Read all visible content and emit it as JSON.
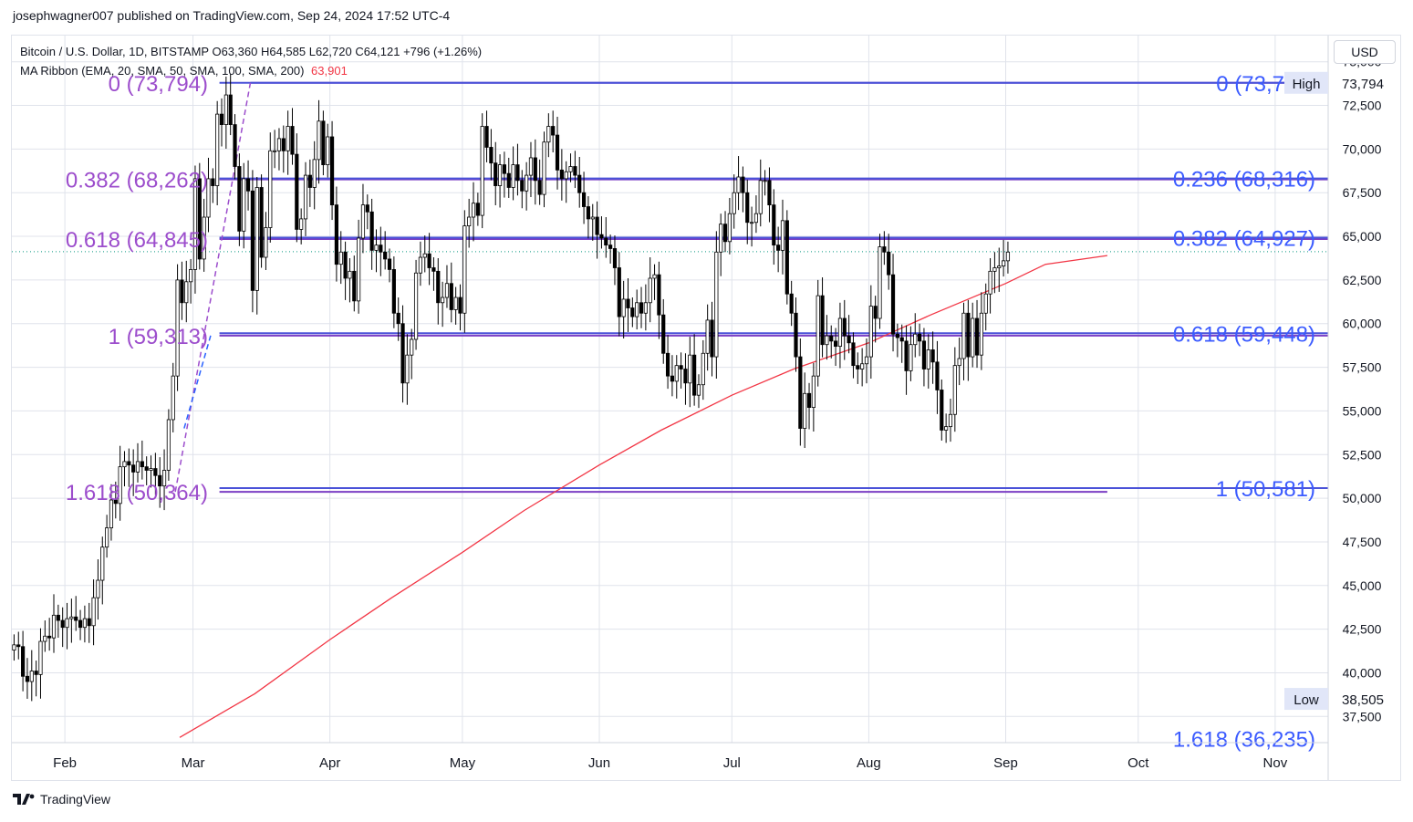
{
  "header": {
    "publisher_line": "josephwagner007 published on TradingView.com, Sep 24, 2024 17:52 UTC-4"
  },
  "legend": {
    "symbol_line": "Bitcoin / U.S. Dollar, 1D, BITSTAMP  O63,360  H64,585  L62,720  C64,121  +796 (+1.26%)",
    "ma_label": "MA Ribbon (EMA, 20, SMA, 50, SMA, 100, SMA, 200)",
    "ma_value": "63,901"
  },
  "price_axis": {
    "currency": "USD",
    "high_label": "High",
    "high_value": "73,794",
    "low_label": "Low",
    "low_value": "38,505"
  },
  "footer": {
    "brand": "TradingView"
  },
  "colors": {
    "up": "#000000",
    "down": "#000000",
    "up_fill": "#ffffff",
    "down_fill": "#000000",
    "ma200": "#f23645",
    "fib_left": "#9c4dcc",
    "fib_right": "#3b5bff",
    "level_line_a": "#7b3fc4",
    "level_line_b": "#4a52d8",
    "grid": "#e0e3eb",
    "tag_high_bg": "#e1e6f8",
    "tag_low_bg": "#e1e6f8"
  },
  "chart_data": {
    "type": "candlestick",
    "title": "Bitcoin / U.S. Dollar, 1D, BITSTAMP",
    "ylim": [
      36000,
      76500
    ],
    "y_ticks": [
      37500,
      40000,
      42500,
      45000,
      47500,
      50000,
      52500,
      55000,
      57500,
      60000,
      62500,
      65000,
      67500,
      70000,
      72500,
      75000
    ],
    "y_tick_labels": [
      "37,500",
      "40,000",
      "42,500",
      "45,000",
      "47,500",
      "50,000",
      "52,500",
      "55,000",
      "57,500",
      "60,000",
      "62,500",
      "65,000",
      "67,500",
      "70,000",
      "72,500",
      "75,000"
    ],
    "x_start": "2024-01-20",
    "x_end": "2024-11-13",
    "x_ticks": [
      {
        "date": "2024-02-01",
        "label": "Feb"
      },
      {
        "date": "2024-03-01",
        "label": "Mar"
      },
      {
        "date": "2024-04-01",
        "label": "Apr"
      },
      {
        "date": "2024-05-01",
        "label": "May"
      },
      {
        "date": "2024-06-01",
        "label": "Jun"
      },
      {
        "date": "2024-07-01",
        "label": "Jul"
      },
      {
        "date": "2024-08-01",
        "label": "Aug"
      },
      {
        "date": "2024-09-01",
        "label": "Sep"
      },
      {
        "date": "2024-10-01",
        "label": "Oct"
      },
      {
        "date": "2024-11-01",
        "label": "Nov"
      }
    ],
    "candles_start_date": "2024-01-20",
    "candles_close": [
      41600,
      41500,
      39800,
      39500,
      40100,
      39900,
      41800,
      42100,
      42000,
      43300,
      43000,
      42600,
      43100,
      43200,
      43000,
      42600,
      43100,
      42700,
      44300,
      45300,
      47200,
      48300,
      49900,
      49700,
      51800,
      52100,
      51900,
      51500,
      52100,
      51800,
      51600,
      51700,
      51300,
      50700,
      51600,
      54500,
      57000,
      62500,
      61200,
      62400,
      63100,
      68300,
      63700,
      66100,
      68300,
      67900,
      72000,
      71400,
      73100,
      71400,
      69000,
      65300,
      68300,
      67600,
      61900,
      67800,
      63800,
      65500,
      69900,
      69900,
      70600,
      69900,
      71300,
      69700,
      65400,
      66000,
      68500,
      67800,
      69400,
      71600,
      69100,
      70700,
      66800,
      63400,
      64100,
      62600,
      63000,
      61300,
      64900,
      66800,
      66400,
      64200,
      64500,
      64100,
      63700,
      63100,
      60600,
      60000,
      56600,
      58200,
      59100,
      62900,
      63800,
      64000,
      63200,
      63000,
      61200,
      61500,
      62300,
      60800,
      61500,
      60600,
      65600,
      66100,
      66900,
      66200,
      71300,
      70100,
      69200,
      67900,
      69100,
      68600,
      67800,
      69100,
      68200,
      67600,
      68500,
      69500,
      68200,
      67400,
      70400,
      71300,
      70800,
      68800,
      68300,
      68700,
      69000,
      68500,
      67500,
      66700,
      66000,
      66100,
      65100,
      64900,
      64500,
      64300,
      63200,
      60400,
      61400,
      60900,
      60400,
      61200,
      60600,
      61200,
      62600,
      62800,
      60500,
      58300,
      57000,
      56700,
      57600,
      57400,
      56600,
      58200,
      55900,
      56500,
      58300,
      60200,
      58100,
      64100,
      65700,
      64700,
      66300,
      67500,
      68400,
      67500,
      65800,
      65800,
      66300,
      68200,
      68200,
      66800,
      64500,
      64200,
      65900,
      61700,
      60600,
      58100,
      54000,
      56000,
      55200,
      57000,
      61600,
      58800,
      59300,
      59000,
      58700,
      60300,
      59300,
      58900,
      57600,
      57400,
      57700,
      58100,
      61000,
      60300,
      64400,
      64100,
      62800,
      59400,
      59200,
      59000,
      57300,
      58800,
      59400,
      59000,
      57400,
      58500,
      57800,
      56200,
      53900,
      54100,
      54800,
      57600,
      58000,
      60600,
      58100,
      60300,
      58200,
      60600,
      61700,
      63000,
      63200,
      63300,
      63600,
      64100
    ],
    "ma200_points": [
      [
        "2024-02-27",
        36300
      ],
      [
        "2024-03-15",
        38800
      ],
      [
        "2024-04-01",
        41900
      ],
      [
        "2024-04-15",
        44300
      ],
      [
        "2024-05-01",
        46900
      ],
      [
        "2024-05-15",
        49300
      ],
      [
        "2024-06-01",
        51900
      ],
      [
        "2024-06-15",
        53900
      ],
      [
        "2024-07-01",
        55900
      ],
      [
        "2024-07-15",
        57400
      ],
      [
        "2024-08-01",
        58900
      ],
      [
        "2024-08-15",
        60500
      ],
      [
        "2024-09-01",
        62300
      ],
      [
        "2024-09-10",
        63400
      ],
      [
        "2024-09-24",
        63901
      ]
    ],
    "fib_left": [
      {
        "ratio": "0",
        "price": 73794,
        "label": "0 (73,794)"
      },
      {
        "ratio": "0.382",
        "price": 68262,
        "label": "0.382 (68,262)"
      },
      {
        "ratio": "0.618",
        "price": 64845,
        "label": "0.618 (64,845)"
      },
      {
        "ratio": "1",
        "price": 59313,
        "label": "1 (59,313)"
      },
      {
        "ratio": "1.618",
        "price": 50364,
        "label": "1.618 (50,364)"
      }
    ],
    "fib_right": [
      {
        "ratio": "0",
        "price": 73794,
        "label": "0 (73,7"
      },
      {
        "ratio": "0.236",
        "price": 68316,
        "label": "0.236 (68,316)"
      },
      {
        "ratio": "0.382",
        "price": 64927,
        "label": "0.382 (64,927)"
      },
      {
        "ratio": "0.618",
        "price": 59448,
        "label": "0.618 (59,448)"
      },
      {
        "ratio": "1",
        "price": 50581,
        "label": "1 (50,581)"
      },
      {
        "ratio": "1.618",
        "price": 36235,
        "label": "1.618 (36,235)"
      }
    ],
    "last_price": 64121,
    "grid": true
  }
}
